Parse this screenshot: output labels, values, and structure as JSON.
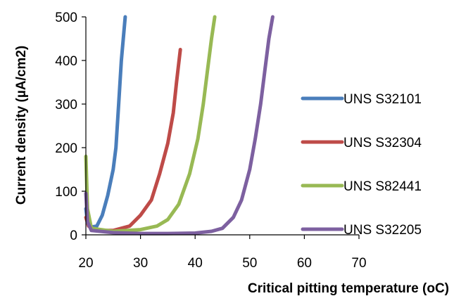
{
  "chart_data": {
    "type": "line",
    "title": "",
    "xlabel": "Critical pitting temperature (oC)",
    "ylabel": "Current density  (µA/cm2)",
    "xlim": [
      20,
      70
    ],
    "ylim": [
      0,
      500
    ],
    "x_ticks": [
      "20",
      "30",
      "40",
      "50",
      "60",
      "70"
    ],
    "y_ticks": [
      "0",
      "100",
      "200",
      "300",
      "400",
      "500"
    ],
    "grid": false,
    "legend_position": "right",
    "series": [
      {
        "name": "UNS S32101",
        "color": "#4a7ebb",
        "points": [
          [
            20,
            60
          ],
          [
            20.3,
            30
          ],
          [
            21,
            18
          ],
          [
            22,
            20
          ],
          [
            23,
            45
          ],
          [
            24,
            90
          ],
          [
            25,
            150
          ],
          [
            25.5,
            200
          ],
          [
            26,
            300
          ],
          [
            26.5,
            400
          ],
          [
            27.2,
            500
          ]
        ]
      },
      {
        "name": "UNS S32304",
        "color": "#be4b48",
        "points": [
          [
            20,
            40
          ],
          [
            20.5,
            20
          ],
          [
            22,
            10
          ],
          [
            25,
            10
          ],
          [
            28,
            20
          ],
          [
            30,
            45
          ],
          [
            32,
            80
          ],
          [
            33.5,
            140
          ],
          [
            35,
            210
          ],
          [
            36,
            280
          ],
          [
            36.6,
            350
          ],
          [
            37.3,
            425
          ]
        ]
      },
      {
        "name": "UNS S82441",
        "color": "#98b954",
        "points": [
          [
            20,
            180
          ],
          [
            20.3,
            60
          ],
          [
            21,
            15
          ],
          [
            25,
            8
          ],
          [
            30,
            12
          ],
          [
            33,
            20
          ],
          [
            35,
            35
          ],
          [
            37,
            70
          ],
          [
            39,
            140
          ],
          [
            40.5,
            220
          ],
          [
            41.5,
            300
          ],
          [
            42.3,
            380
          ],
          [
            43,
            450
          ],
          [
            43.6,
            500
          ]
        ]
      },
      {
        "name": "UNS S32205",
        "color": "#7d60a0",
        "points": [
          [
            20,
            95
          ],
          [
            20.3,
            30
          ],
          [
            21,
            10
          ],
          [
            25,
            5
          ],
          [
            30,
            3
          ],
          [
            35,
            3
          ],
          [
            40,
            4
          ],
          [
            43,
            8
          ],
          [
            45,
            15
          ],
          [
            47,
            40
          ],
          [
            48.5,
            80
          ],
          [
            50,
            150
          ],
          [
            51,
            220
          ],
          [
            52,
            300
          ],
          [
            52.8,
            380
          ],
          [
            53.5,
            450
          ],
          [
            54.2,
            500
          ]
        ]
      }
    ]
  }
}
